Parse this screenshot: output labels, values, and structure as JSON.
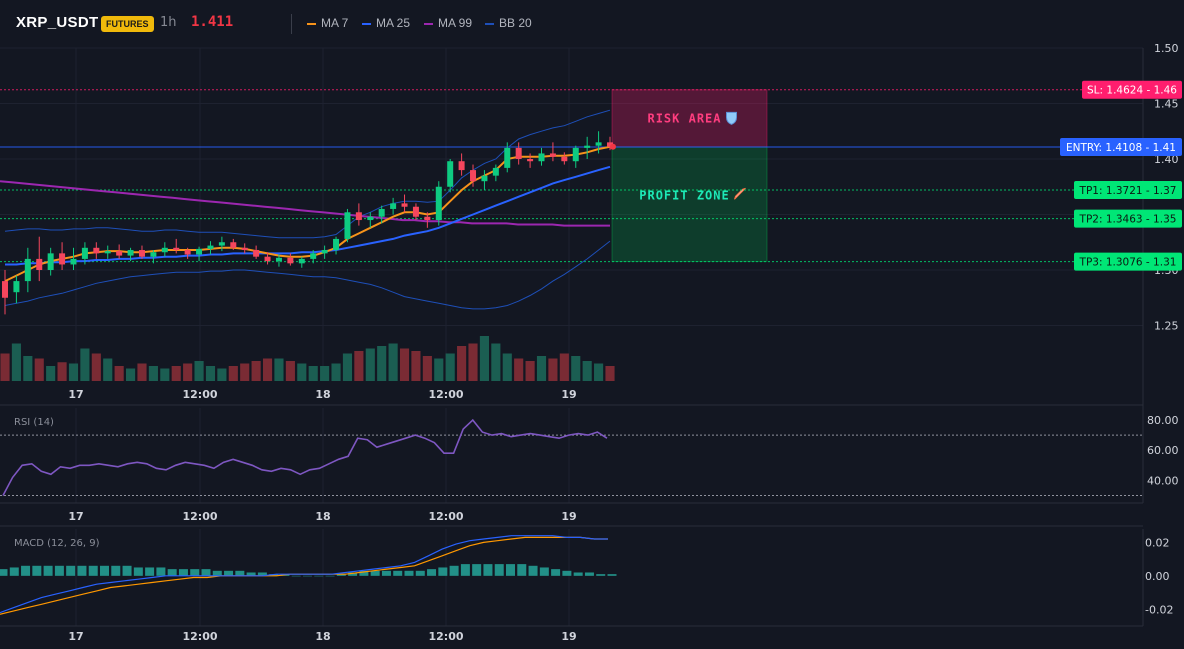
{
  "header": {
    "symbol": "XRP_USDT",
    "badge": "FUTURES",
    "timeframe": "1h",
    "price": "1.411",
    "indicators": [
      {
        "label": "MA 7",
        "color": "#f7931a"
      },
      {
        "label": "MA 25",
        "color": "#2962ff"
      },
      {
        "label": "MA 99",
        "color": "#9c27b0"
      },
      {
        "label": "BB 20",
        "color": "#1e4fb8"
      }
    ]
  },
  "chart_data": [
    {
      "type": "candlestick",
      "title": "",
      "y_axis": {
        "ticks": [
          "1.50",
          "1.45",
          "1.40",
          "1.35",
          "1.30",
          "1.25"
        ],
        "range": [
          1.2,
          1.5
        ]
      },
      "x_axis": {
        "ticks": [
          "17",
          "12:00",
          "18",
          "12:00",
          "19"
        ]
      },
      "levels": [
        {
          "name": "SL",
          "label": "SL: 1.4624 - 1.46",
          "value": 1.4624,
          "color": "#ff1e6e"
        },
        {
          "name": "ENTRY",
          "label": "ENTRY: 1.4108 - 1.41",
          "value": 1.4108,
          "color": "#2962ff"
        },
        {
          "name": "TP1",
          "label": "TP1: 1.3721 - 1.37",
          "value": 1.3721,
          "color": "#00e676"
        },
        {
          "name": "TP2",
          "label": "TP2: 1.3463 - 1.35",
          "value": 1.3463,
          "color": "#00e676"
        },
        {
          "name": "TP3",
          "label": "TP3: 1.3076 - 1.31",
          "value": 1.3076,
          "color": "#00e676"
        }
      ],
      "zones": [
        {
          "label": "RISK AREA",
          "icon": "shield-icon",
          "from": 1.4108,
          "to": 1.4624,
          "color": "#ff1e6e"
        },
        {
          "label": "PROFIT ZONE",
          "icon": "rocket-icon",
          "from": 1.3076,
          "to": 1.4108,
          "color": "#00c853"
        }
      ],
      "candles": [
        [
          1.29,
          1.3,
          1.26,
          1.275
        ],
        [
          1.28,
          1.295,
          1.27,
          1.29
        ],
        [
          1.29,
          1.32,
          1.28,
          1.31
        ],
        [
          1.31,
          1.33,
          1.29,
          1.3
        ],
        [
          1.3,
          1.32,
          1.295,
          1.315
        ],
        [
          1.315,
          1.325,
          1.3,
          1.305
        ],
        [
          1.305,
          1.32,
          1.3,
          1.31
        ],
        [
          1.31,
          1.325,
          1.305,
          1.32
        ],
        [
          1.32,
          1.325,
          1.31,
          1.315
        ],
        [
          1.315,
          1.322,
          1.31,
          1.317
        ],
        [
          1.317,
          1.323,
          1.31,
          1.313
        ],
        [
          1.313,
          1.32,
          1.308,
          1.318
        ],
        [
          1.318,
          1.322,
          1.31,
          1.312
        ],
        [
          1.312,
          1.318,
          1.306,
          1.316
        ],
        [
          1.316,
          1.325,
          1.312,
          1.32
        ],
        [
          1.32,
          1.328,
          1.315,
          1.318
        ],
        [
          1.318,
          1.32,
          1.31,
          1.314
        ],
        [
          1.314,
          1.321,
          1.308,
          1.319
        ],
        [
          1.319,
          1.326,
          1.314,
          1.322
        ],
        [
          1.322,
          1.33,
          1.317,
          1.325
        ],
        [
          1.325,
          1.328,
          1.318,
          1.32
        ],
        [
          1.32,
          1.324,
          1.315,
          1.318
        ],
        [
          1.318,
          1.322,
          1.31,
          1.312
        ],
        [
          1.312,
          1.316,
          1.305,
          1.308
        ],
        [
          1.308,
          1.314,
          1.303,
          1.311
        ],
        [
          1.311,
          1.315,
          1.304,
          1.306
        ],
        [
          1.306,
          1.312,
          1.302,
          1.31
        ],
        [
          1.31,
          1.318,
          1.306,
          1.315
        ],
        [
          1.315,
          1.322,
          1.31,
          1.318
        ],
        [
          1.318,
          1.33,
          1.314,
          1.328
        ],
        [
          1.328,
          1.355,
          1.325,
          1.352
        ],
        [
          1.352,
          1.36,
          1.34,
          1.345
        ],
        [
          1.345,
          1.352,
          1.338,
          1.348
        ],
        [
          1.348,
          1.358,
          1.342,
          1.355
        ],
        [
          1.355,
          1.365,
          1.35,
          1.36
        ],
        [
          1.36,
          1.368,
          1.352,
          1.357
        ],
        [
          1.357,
          1.36,
          1.345,
          1.348
        ],
        [
          1.348,
          1.352,
          1.338,
          1.345
        ],
        [
          1.345,
          1.38,
          1.34,
          1.375
        ],
        [
          1.375,
          1.4,
          1.37,
          1.398
        ],
        [
          1.398,
          1.405,
          1.385,
          1.39
        ],
        [
          1.39,
          1.395,
          1.375,
          1.38
        ],
        [
          1.38,
          1.39,
          1.372,
          1.385
        ],
        [
          1.385,
          1.395,
          1.38,
          1.392
        ],
        [
          1.392,
          1.415,
          1.388,
          1.41
        ],
        [
          1.41,
          1.415,
          1.395,
          1.4
        ],
        [
          1.4,
          1.405,
          1.392,
          1.398
        ],
        [
          1.398,
          1.41,
          1.394,
          1.405
        ],
        [
          1.405,
          1.415,
          1.398,
          1.402
        ],
        [
          1.402,
          1.406,
          1.395,
          1.398
        ],
        [
          1.398,
          1.412,
          1.392,
          1.41
        ],
        [
          1.41,
          1.42,
          1.4,
          1.412
        ],
        [
          1.412,
          1.425,
          1.405,
          1.415
        ],
        [
          1.415,
          1.42,
          1.408,
          1.411
        ]
      ],
      "ma7": [
        1.29,
        1.295,
        1.3,
        1.305,
        1.308,
        1.31,
        1.312,
        1.315,
        1.316,
        1.317,
        1.317,
        1.316,
        1.316,
        1.317,
        1.318,
        1.318,
        1.318,
        1.318,
        1.319,
        1.32,
        1.32,
        1.319,
        1.317,
        1.315,
        1.313,
        1.312,
        1.312,
        1.313,
        1.316,
        1.32,
        1.328,
        1.333,
        1.338,
        1.343,
        1.348,
        1.352,
        1.352,
        1.35,
        1.352,
        1.362,
        1.372,
        1.38,
        1.385,
        1.39,
        1.4,
        1.402,
        1.402,
        1.402,
        1.403,
        1.403,
        1.404,
        1.406,
        1.409,
        1.411
      ],
      "ma25": [
        1.305,
        1.305,
        1.306,
        1.306,
        1.307,
        1.307,
        1.308,
        1.308,
        1.309,
        1.309,
        1.31,
        1.31,
        1.311,
        1.311,
        1.312,
        1.312,
        1.313,
        1.313,
        1.314,
        1.314,
        1.315,
        1.315,
        1.315,
        1.315,
        1.315,
        1.315,
        1.316,
        1.316,
        1.317,
        1.318,
        1.32,
        1.322,
        1.324,
        1.326,
        1.328,
        1.331,
        1.333,
        1.335,
        1.338,
        1.342,
        1.346,
        1.35,
        1.354,
        1.358,
        1.362,
        1.366,
        1.37,
        1.374,
        1.378,
        1.381,
        1.384,
        1.387,
        1.39,
        1.393
      ],
      "ma99": [
        1.38,
        1.379,
        1.378,
        1.377,
        1.376,
        1.375,
        1.374,
        1.373,
        1.372,
        1.371,
        1.37,
        1.369,
        1.368,
        1.367,
        1.366,
        1.365,
        1.364,
        1.363,
        1.362,
        1.361,
        1.36,
        1.359,
        1.358,
        1.357,
        1.356,
        1.355,
        1.354,
        1.353,
        1.352,
        1.351,
        1.35,
        1.349,
        1.348,
        1.347,
        1.346,
        1.345,
        1.345,
        1.344,
        1.344,
        1.343,
        1.343,
        1.342,
        1.342,
        1.342,
        1.342,
        1.341,
        1.341,
        1.341,
        1.341,
        1.34,
        1.34,
        1.34,
        1.34,
        1.34
      ],
      "bb_upper": [
        1.335,
        1.336,
        1.337,
        1.337,
        1.336,
        1.336,
        1.337,
        1.337,
        1.338,
        1.338,
        1.337,
        1.336,
        1.335,
        1.335,
        1.336,
        1.336,
        1.335,
        1.334,
        1.334,
        1.334,
        1.333,
        1.332,
        1.331,
        1.33,
        1.329,
        1.329,
        1.329,
        1.329,
        1.33,
        1.332,
        1.34,
        1.348,
        1.352,
        1.357,
        1.36,
        1.362,
        1.362,
        1.361,
        1.362,
        1.372,
        1.383,
        1.39,
        1.396,
        1.4,
        1.41,
        1.418,
        1.422,
        1.425,
        1.428,
        1.43,
        1.434,
        1.438,
        1.441,
        1.444
      ],
      "bb_lower": [
        1.268,
        1.27,
        1.272,
        1.275,
        1.277,
        1.279,
        1.282,
        1.285,
        1.288,
        1.29,
        1.292,
        1.294,
        1.295,
        1.296,
        1.297,
        1.298,
        1.298,
        1.298,
        1.299,
        1.299,
        1.3,
        1.3,
        1.299,
        1.298,
        1.297,
        1.296,
        1.295,
        1.294,
        1.294,
        1.293,
        1.291,
        1.289,
        1.287,
        1.284,
        1.28,
        1.276,
        1.274,
        1.272,
        1.27,
        1.268,
        1.266,
        1.265,
        1.265,
        1.266,
        1.268,
        1.272,
        1.277,
        1.283,
        1.29,
        1.296,
        1.303,
        1.31,
        1.318,
        1.326
      ],
      "volume": [
        22,
        30,
        20,
        18,
        12,
        15,
        14,
        26,
        22,
        18,
        12,
        10,
        14,
        12,
        10,
        12,
        14,
        16,
        12,
        10,
        12,
        14,
        16,
        18,
        18,
        16,
        14,
        12,
        12,
        14,
        22,
        24,
        26,
        28,
        30,
        26,
        24,
        20,
        18,
        22,
        28,
        30,
        36,
        30,
        22,
        18,
        16,
        20,
        18,
        22,
        20,
        16,
        14,
        12
      ]
    },
    {
      "type": "line",
      "title": "RSI (14)",
      "y_axis": {
        "ticks": [
          "80.00",
          "60.00",
          "40.00"
        ],
        "range": [
          25,
          88
        ]
      },
      "x_axis": {
        "ticks": [
          "17",
          "12:00",
          "18",
          "12:00",
          "19"
        ]
      },
      "bands": [
        70,
        30
      ],
      "series": [
        {
          "color": "#7e57c2",
          "values": [
            30,
            42,
            50,
            51,
            46,
            44,
            49,
            48,
            50,
            50,
            51,
            50,
            49,
            51,
            52,
            51,
            48,
            47,
            50,
            52,
            51,
            50,
            48,
            52,
            54,
            52,
            50,
            47,
            46,
            48,
            47,
            44,
            47,
            48,
            51,
            54,
            56,
            68,
            67,
            62,
            64,
            66,
            68,
            70,
            68,
            65,
            58,
            58,
            74,
            80,
            72,
            70,
            71,
            69,
            70,
            71,
            70,
            69,
            68,
            70,
            71,
            70,
            72,
            68
          ]
        }
      ]
    },
    {
      "type": "bar",
      "title": "MACD (12, 26, 9)",
      "y_axis": {
        "ticks": [
          "0.02",
          "0.00",
          "-0.02"
        ],
        "range": [
          -0.03,
          0.028
        ]
      },
      "x_axis": {
        "ticks": [
          "17",
          "12:00",
          "18",
          "12:00",
          "19"
        ]
      },
      "histogram": [
        0.004,
        0.005,
        0.006,
        0.006,
        0.006,
        0.006,
        0.006,
        0.006,
        0.006,
        0.006,
        0.006,
        0.006,
        0.005,
        0.005,
        0.005,
        0.004,
        0.004,
        0.004,
        0.004,
        0.003,
        0.003,
        0.003,
        0.002,
        0.002,
        0.001,
        0.001,
        0.0,
        0.0,
        0.0,
        0.0,
        0.001,
        0.002,
        0.003,
        0.003,
        0.003,
        0.003,
        0.003,
        0.003,
        0.004,
        0.005,
        0.006,
        0.007,
        0.007,
        0.007,
        0.007,
        0.007,
        0.007,
        0.006,
        0.005,
        0.004,
        0.003,
        0.002,
        0.002,
        0.001,
        0.001
      ],
      "macd_line": [
        -0.022,
        -0.019,
        -0.016,
        -0.013,
        -0.011,
        -0.009,
        -0.007,
        -0.005,
        -0.004,
        -0.003,
        -0.002,
        -0.001,
        0.0,
        0.0,
        0.0,
        0.0,
        0.0,
        0.0,
        0.0,
        0.0,
        0.001,
        0.001,
        0.001,
        0.001,
        0.001,
        0.002,
        0.003,
        0.004,
        0.005,
        0.006,
        0.008,
        0.012,
        0.016,
        0.019,
        0.021,
        0.022,
        0.023,
        0.024,
        0.024,
        0.024,
        0.024,
        0.023,
        0.023,
        0.022,
        0.022
      ],
      "signal_line": [
        -0.023,
        -0.021,
        -0.019,
        -0.017,
        -0.015,
        -0.013,
        -0.011,
        -0.009,
        -0.007,
        -0.006,
        -0.005,
        -0.004,
        -0.003,
        -0.002,
        -0.001,
        -0.001,
        0.0,
        0.0,
        0.0,
        0.0,
        0.0,
        0.001,
        0.001,
        0.001,
        0.001,
        0.001,
        0.002,
        0.003,
        0.004,
        0.005,
        0.006,
        0.009,
        0.012,
        0.015,
        0.018,
        0.02,
        0.021,
        0.022,
        0.023,
        0.023,
        0.023,
        0.023,
        0.023,
        0.022,
        0.022
      ]
    }
  ]
}
